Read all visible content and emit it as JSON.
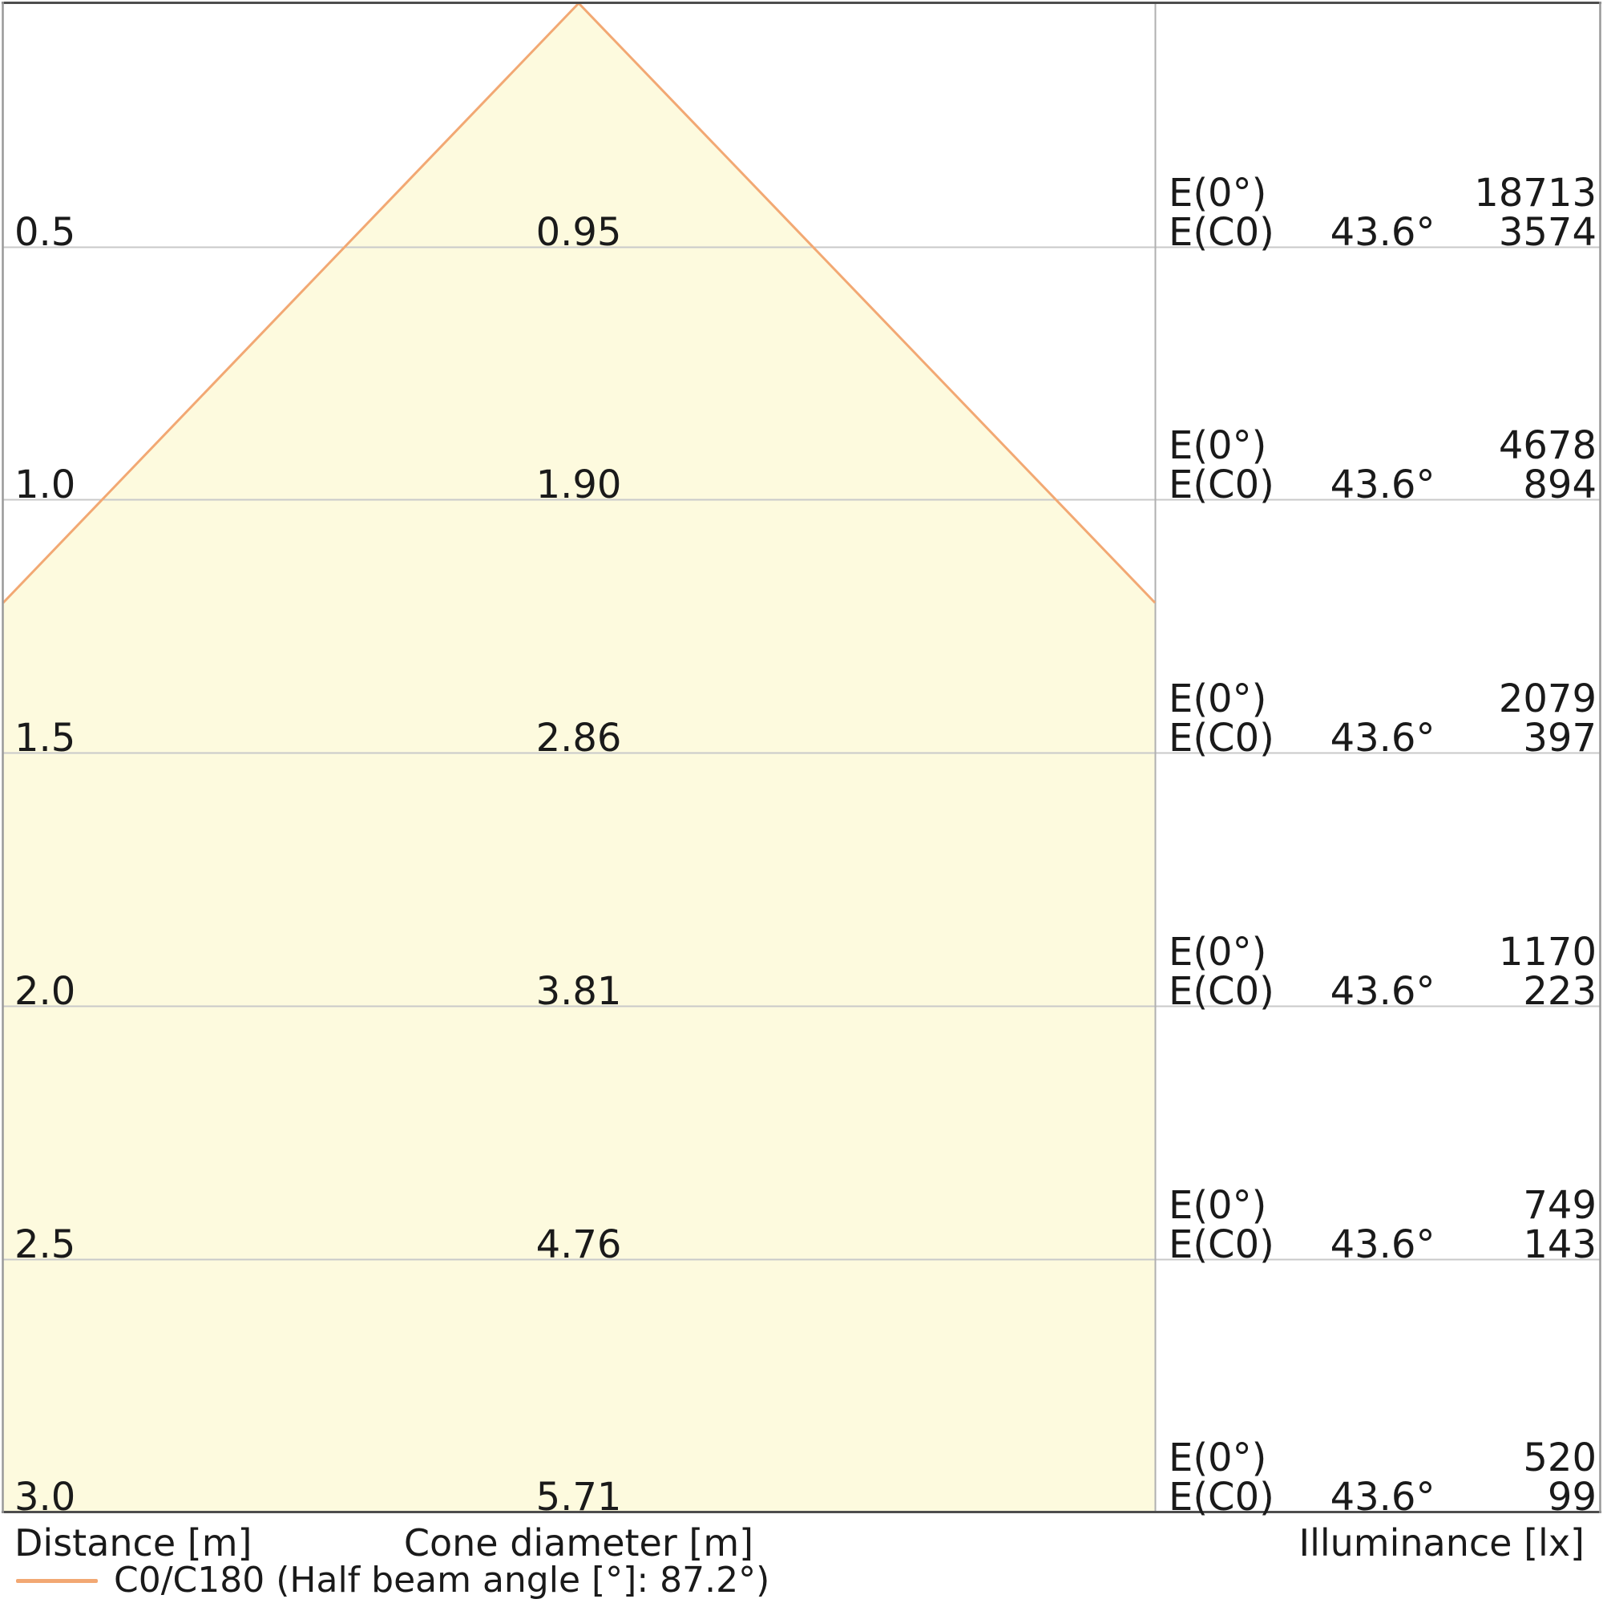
{
  "axis_labels": {
    "distance": "Distance [m]",
    "cone_diameter": "Cone diameter [m]",
    "illuminance": "Illuminance [lx]"
  },
  "legend": {
    "label": "C0/C180 (Half beam angle [°]: 87.2°)"
  },
  "rows": [
    {
      "distance": "0.5",
      "diameter": "0.95",
      "e0_label": "E(0°)",
      "e0_value": "18713",
      "ec0_label": "E(C0)",
      "ec0_angle": "43.6°",
      "ec0_value": "3574"
    },
    {
      "distance": "1.0",
      "diameter": "1.90",
      "e0_label": "E(0°)",
      "e0_value": "4678",
      "ec0_label": "E(C0)",
      "ec0_angle": "43.6°",
      "ec0_value": "894"
    },
    {
      "distance": "1.5",
      "diameter": "2.86",
      "e0_label": "E(0°)",
      "e0_value": "2079",
      "ec0_label": "E(C0)",
      "ec0_angle": "43.6°",
      "ec0_value": "397"
    },
    {
      "distance": "2.0",
      "diameter": "3.81",
      "e0_label": "E(0°)",
      "e0_value": "1170",
      "ec0_label": "E(C0)",
      "ec0_angle": "43.6°",
      "ec0_value": "223"
    },
    {
      "distance": "2.5",
      "diameter": "4.76",
      "e0_label": "E(0°)",
      "e0_value": "749",
      "ec0_label": "E(C0)",
      "ec0_angle": "43.6°",
      "ec0_value": "143"
    },
    {
      "distance": "3.0",
      "diameter": "5.71",
      "e0_label": "E(0°)",
      "e0_value": "520",
      "ec0_label": "E(C0)",
      "ec0_angle": "43.6°",
      "ec0_value": "99"
    }
  ],
  "colors": {
    "cone_fill": "#FDFADE",
    "cone_stroke": "#F2A873",
    "grid_line": "#C9C9C9",
    "frame_dark": "#4D4D4D",
    "frame_side": "#999999",
    "column_divider": "#B0B0B0",
    "text": "#1A1A1A"
  },
  "chart_data": {
    "type": "area",
    "title": "Light cone diagram (C0/C180 plane)",
    "xlabel": "Cone diameter [m]",
    "ylabel": "Distance [m]",
    "legend": [
      "C0/C180 (Half beam angle [°]: 87.2°)"
    ],
    "legend_position": "bottom-left",
    "grid": true,
    "half_beam_angle_deg": 87.2,
    "half_angle_from_axis_deg": 43.6,
    "distance_m": [
      0.5,
      1.0,
      1.5,
      2.0,
      2.5,
      3.0
    ],
    "cone_diameter_m": [
      0.95,
      1.9,
      2.86,
      3.81,
      4.76,
      5.71
    ],
    "series": [
      {
        "name": "E(0°) illuminance [lx]",
        "values": [
          18713,
          4678,
          2079,
          1170,
          749,
          520
        ]
      },
      {
        "name": "E(C0) illuminance [lx] at 43.6°",
        "values": [
          3574,
          894,
          397,
          223,
          143,
          99
        ]
      }
    ],
    "ylim": [
      0,
      3.0
    ]
  }
}
